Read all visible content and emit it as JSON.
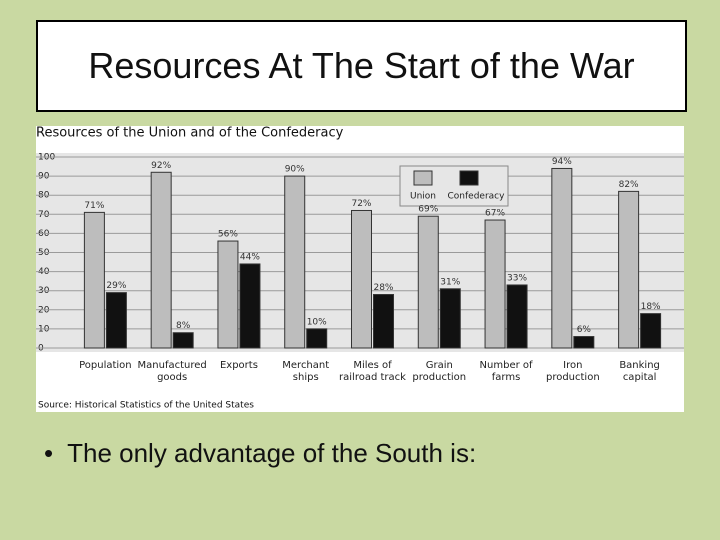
{
  "title": "Resources At The Start of the War",
  "bullets": [
    "The only advantage of the South is:"
  ],
  "chart_data": {
    "type": "bar",
    "title": "Resources of the Union and of the Confederacy",
    "source": "Source: Historical Statistics of the United States",
    "categories": [
      "Population",
      "Manufactured goods",
      "Exports",
      "Merchant ships",
      "Miles of railroad track",
      "Grain production",
      "Number of farms",
      "Iron production",
      "Banking capital"
    ],
    "series": [
      {
        "name": "Union",
        "color": "#bdbdbd",
        "values": [
          71,
          92,
          56,
          90,
          72,
          69,
          67,
          94,
          82
        ],
        "value_labels": [
          "71%",
          "92%",
          "56%",
          "90%",
          "72%",
          "69%",
          "67%",
          "94%",
          "82%"
        ]
      },
      {
        "name": "Confederacy",
        "color": "#111111",
        "values": [
          29,
          8,
          44,
          10,
          28,
          31,
          33,
          6,
          18
        ],
        "value_labels": [
          "29%",
          "8%",
          "44%",
          "10%",
          "28%",
          "31%",
          "33%",
          "6%",
          "18%"
        ]
      }
    ],
    "ylim": [
      0,
      100
    ],
    "yticks": [
      0,
      10,
      20,
      30,
      40,
      50,
      60,
      70,
      80,
      90,
      100
    ],
    "grid": true
  }
}
